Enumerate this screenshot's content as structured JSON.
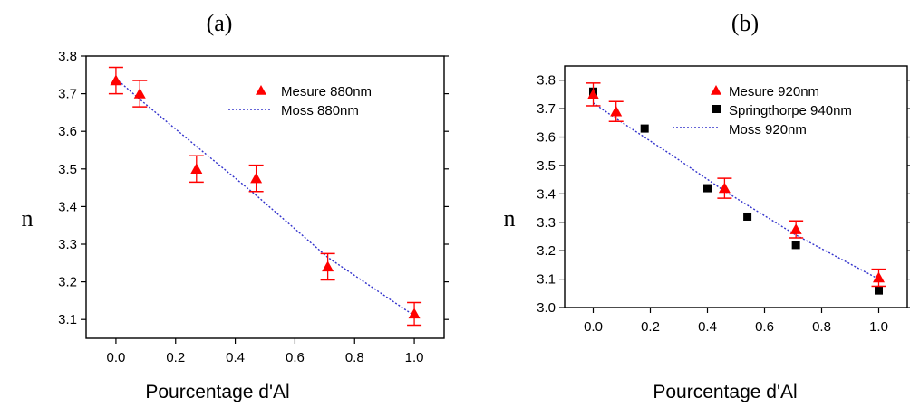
{
  "colors": {
    "mesure": "#ff0000",
    "moss": "#3333cc",
    "springthorpe": "#000000"
  },
  "chart_data": [
    {
      "type": "scatter",
      "panel_label": "(a)",
      "ylabel": "n",
      "xlabel": "Pourcentage d'Al",
      "xlim": [
        -0.1,
        1.1
      ],
      "ylim": [
        3.05,
        3.8
      ],
      "x_ticks": [
        "0.0",
        "0.2",
        "0.4",
        "0.6",
        "0.8",
        "1.0"
      ],
      "y_ticks": [
        "3.1",
        "3.2",
        "3.3",
        "3.4",
        "3.5",
        "3.6",
        "3.7",
        "3.8"
      ],
      "legend_position": "top-right",
      "series": [
        {
          "name": "Mesure 880nm",
          "kind": "triangle-errorbar",
          "x": [
            0.0,
            0.08,
            0.27,
            0.47,
            0.71,
            1.0
          ],
          "y": [
            3.735,
            3.7,
            3.5,
            3.475,
            3.24,
            3.115
          ],
          "yerr": [
            0.035,
            0.035,
            0.035,
            0.035,
            0.035,
            0.03
          ]
        },
        {
          "name": "Moss 880nm",
          "kind": "dotted-line",
          "x": [
            0.0,
            0.08,
            0.27,
            0.47,
            0.71,
            1.0
          ],
          "y": [
            3.74,
            3.685,
            3.56,
            3.43,
            3.265,
            3.11
          ]
        }
      ]
    },
    {
      "type": "scatter",
      "panel_label": "(b)",
      "ylabel": "n",
      "xlabel": "Pourcentage d'Al",
      "xlim": [
        -0.1,
        1.1
      ],
      "ylim": [
        3.0,
        3.85
      ],
      "x_ticks": [
        "0.0",
        "0.2",
        "0.4",
        "0.6",
        "0.8",
        "1.0"
      ],
      "y_ticks": [
        "3.0",
        "3.1",
        "3.2",
        "3.3",
        "3.4",
        "3.5",
        "3.6",
        "3.7",
        "3.8"
      ],
      "legend_position": "top-right",
      "series": [
        {
          "name": "Mesure 920nm",
          "kind": "triangle-errorbar",
          "x": [
            0.0,
            0.08,
            0.46,
            0.71,
            1.0
          ],
          "y": [
            3.75,
            3.69,
            3.42,
            3.275,
            3.105
          ],
          "yerr": [
            0.04,
            0.035,
            0.035,
            0.03,
            0.03
          ]
        },
        {
          "name": "Springthorpe 940nm",
          "kind": "square",
          "x": [
            0.0,
            0.18,
            0.4,
            0.54,
            0.71,
            1.0
          ],
          "y": [
            3.76,
            3.63,
            3.42,
            3.32,
            3.22,
            3.06
          ]
        },
        {
          "name": "Moss 920nm",
          "kind": "dotted-line",
          "x": [
            0.0,
            0.08,
            0.27,
            0.46,
            0.71,
            1.0
          ],
          "y": [
            3.72,
            3.665,
            3.54,
            3.41,
            3.255,
            3.1
          ]
        }
      ]
    }
  ]
}
